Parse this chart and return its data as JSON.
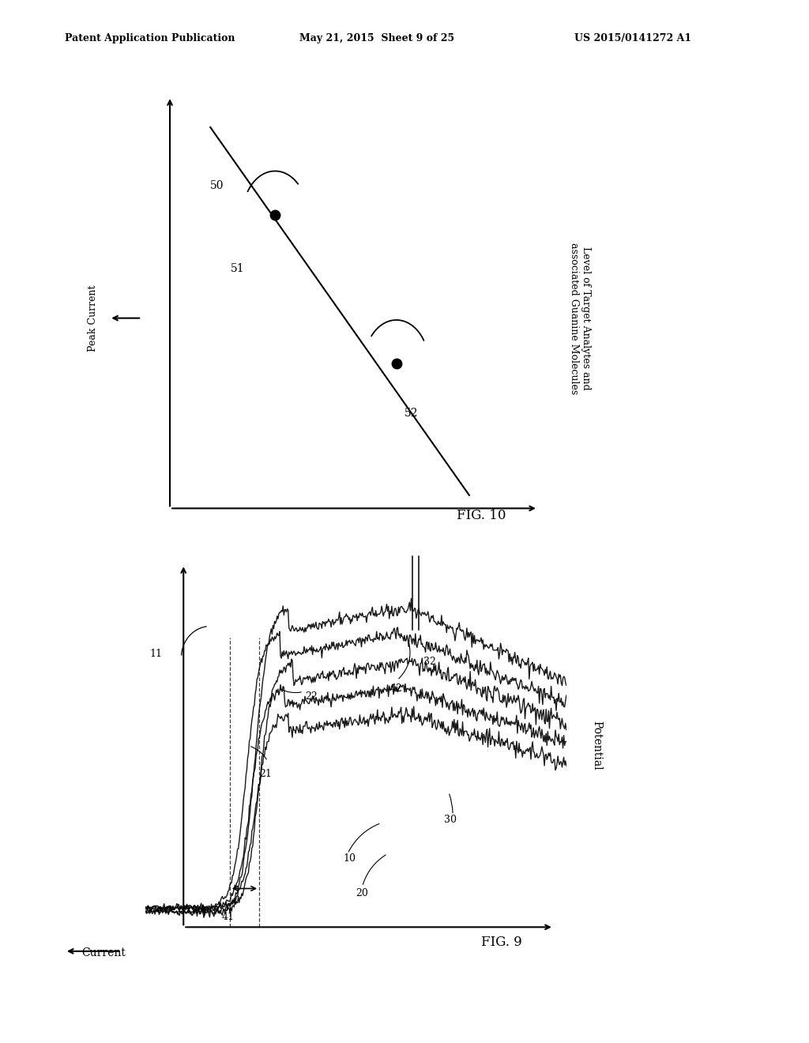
{
  "background_color": "#ffffff",
  "header_left": "Patent Application Publication",
  "header_center": "May 21, 2015  Sheet 9 of 25",
  "header_right": "US 2015/0141272 A1",
  "fig9_title": "FIG. 9",
  "fig10_title": "FIG. 10",
  "fig9_xlabel": "Potential",
  "fig9_ylabel": "Current",
  "fig10_xlabel": "Level of Target Analytes and\nassociated Guanine Molecules",
  "fig10_ylabel": "Peak Current"
}
